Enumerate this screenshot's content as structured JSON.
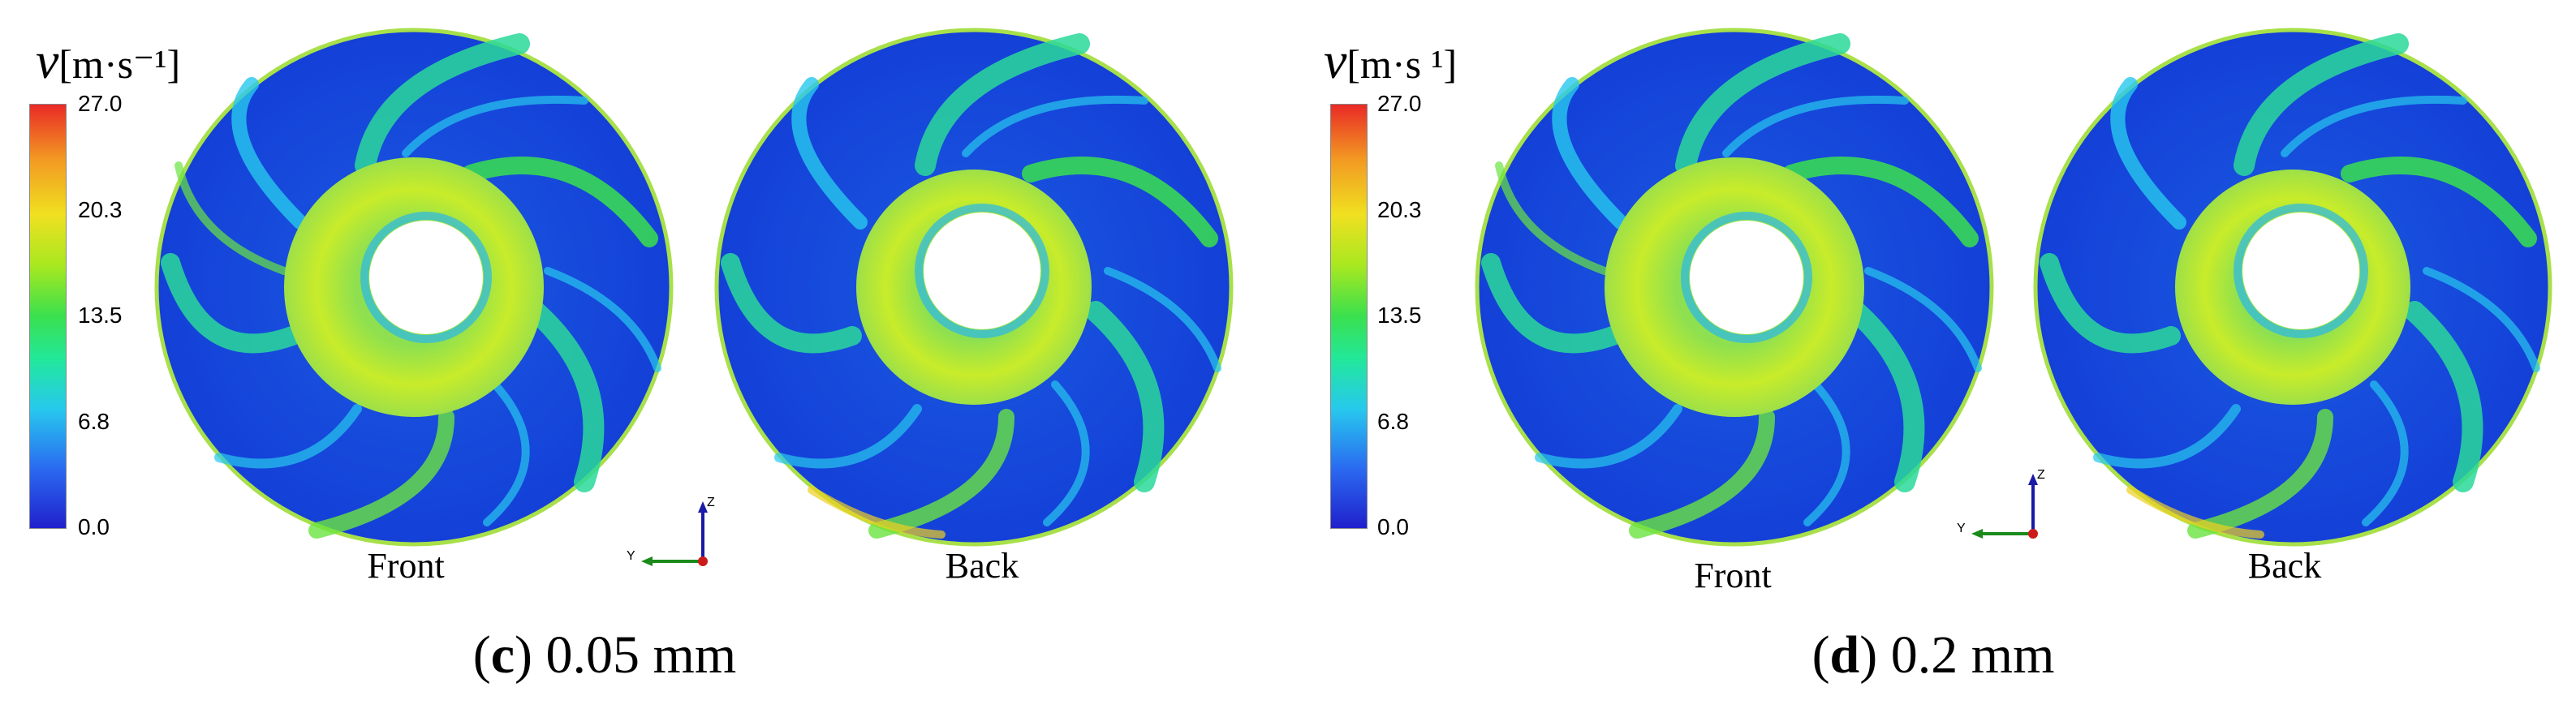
{
  "legend": {
    "symbol": "v",
    "unit_c": "[m·s⁻¹]",
    "unit_d": "[m·s ¹]",
    "ticks": [
      "27.0",
      "20.3",
      "13.5",
      "6.8",
      "0.0"
    ],
    "colors": {
      "min": "#2020cc",
      "low": "#27c8ee",
      "mid": "#3ae04e",
      "high": "#f0e020",
      "max": "#ea2a26"
    }
  },
  "panels": [
    {
      "letter": "c",
      "value": " 0.05 mm",
      "front_label": "Front",
      "back_label": "Back"
    },
    {
      "letter": "d",
      "value": " 0.2 mm",
      "front_label": "Front",
      "back_label": "Back"
    }
  ],
  "axes": {
    "z": "Z",
    "y": "Y"
  }
}
